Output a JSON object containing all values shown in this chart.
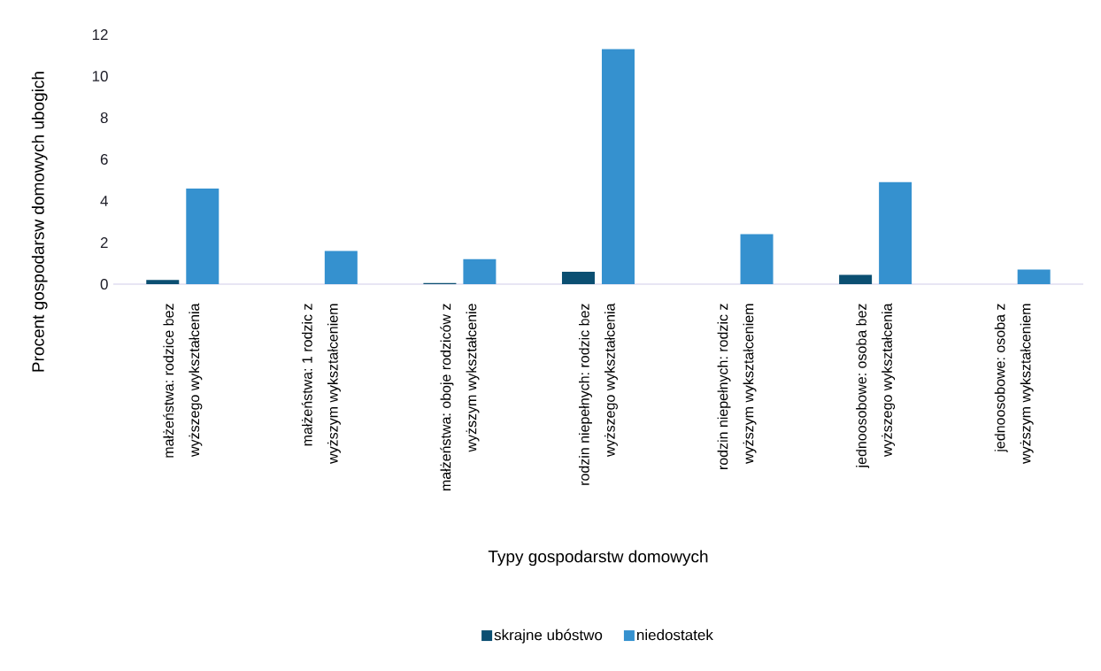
{
  "chart_data": {
    "type": "bar",
    "xlabel": "Typy gospodarstw domowych",
    "ylabel": "Procent gospodarsw domowych ubogich",
    "categories": [
      "małżeństwa: rodzice bez wyższego wykształcenia",
      "małżeństwa: 1 rodzic z wyższym wykształceniem",
      "małżeństwa: oboje rodziców z wyższym wykształcenie",
      "rodzin niepełnych: rodzic bez wyższego wykształcenia",
      "rodzin niepełnych: rodzic z wyższym wykształceniem",
      "jednoosobowe: osoba bez wyższego wykształcenia",
      "jednoosobowe: osoba z wyższym wykształceniem"
    ],
    "series": [
      {
        "name": "skrajne ubóstwo",
        "color": "#0b4f72",
        "values": [
          0.2,
          0,
          0.05,
          0.6,
          0,
          0.45,
          0
        ]
      },
      {
        "name": "niedostatek",
        "color": "#3591cf",
        "values": [
          4.6,
          1.6,
          1.2,
          11.3,
          2.4,
          4.9,
          0.7
        ]
      }
    ],
    "ylim": [
      0,
      12
    ],
    "yticks": [
      0,
      2,
      4,
      6,
      8,
      10,
      12
    ],
    "legend": "bottom"
  }
}
